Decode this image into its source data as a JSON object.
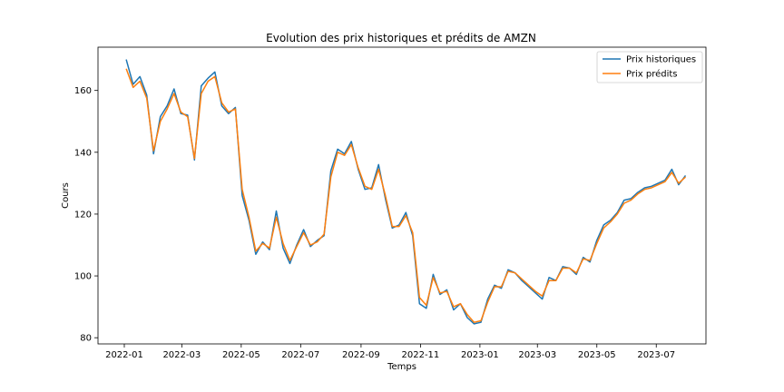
{
  "chart_data": {
    "type": "line",
    "title": "Evolution des prix historiques et prédits de AMZN",
    "xlabel": "Temps",
    "ylabel": "Cours",
    "x_ticks": [
      "2022-01",
      "2022-03",
      "2022-05",
      "2022-07",
      "2022-09",
      "2022-11",
      "2023-01",
      "2023-03",
      "2023-05",
      "2023-07"
    ],
    "y_ticks": [
      80,
      100,
      120,
      140,
      160
    ],
    "xlim": [
      "2021-12-05",
      "2023-08-21"
    ],
    "ylim": [
      78,
      174
    ],
    "legend_position": "top-right",
    "grid": false,
    "x": [
      "2022-01-03",
      "2022-01-10",
      "2022-01-17",
      "2022-01-24",
      "2022-01-31",
      "2022-02-07",
      "2022-02-14",
      "2022-02-21",
      "2022-02-28",
      "2022-03-07",
      "2022-03-14",
      "2022-03-21",
      "2022-03-28",
      "2022-04-04",
      "2022-04-11",
      "2022-04-18",
      "2022-04-25",
      "2022-05-02",
      "2022-05-09",
      "2022-05-16",
      "2022-05-23",
      "2022-05-30",
      "2022-06-06",
      "2022-06-13",
      "2022-06-20",
      "2022-06-27",
      "2022-07-04",
      "2022-07-11",
      "2022-07-18",
      "2022-07-25",
      "2022-08-01",
      "2022-08-08",
      "2022-08-15",
      "2022-08-22",
      "2022-08-29",
      "2022-09-05",
      "2022-09-12",
      "2022-09-19",
      "2022-09-26",
      "2022-10-03",
      "2022-10-10",
      "2022-10-17",
      "2022-10-24",
      "2022-10-31",
      "2022-11-07",
      "2022-11-14",
      "2022-11-21",
      "2022-11-28",
      "2022-12-05",
      "2022-12-12",
      "2022-12-19",
      "2022-12-26",
      "2023-01-02",
      "2023-01-09",
      "2023-01-16",
      "2023-01-23",
      "2023-01-30",
      "2023-02-06",
      "2023-02-13",
      "2023-02-20",
      "2023-02-27",
      "2023-03-06",
      "2023-03-13",
      "2023-03-20",
      "2023-03-27",
      "2023-04-03",
      "2023-04-10",
      "2023-04-17",
      "2023-04-24",
      "2023-05-01",
      "2023-05-08",
      "2023-05-15",
      "2023-05-22",
      "2023-05-29",
      "2023-06-05",
      "2023-06-12",
      "2023-06-19",
      "2023-06-26",
      "2023-07-03",
      "2023-07-10",
      "2023-07-17",
      "2023-07-24",
      "2023-07-31"
    ],
    "series": [
      {
        "name": "Prix historiques",
        "color": "#1f77b4",
        "values": [
          170.0,
          162.0,
          164.5,
          158.5,
          139.5,
          151.5,
          155.0,
          160.5,
          152.5,
          152.0,
          137.5,
          161.5,
          164.0,
          166.0,
          155.0,
          152.5,
          154.5,
          126.0,
          118.0,
          107.0,
          111.0,
          108.5,
          121.0,
          109.0,
          104.0,
          110.0,
          115.0,
          109.5,
          111.5,
          113.0,
          134.0,
          141.0,
          139.5,
          143.5,
          134.5,
          128.0,
          128.5,
          136.0,
          125.0,
          115.5,
          116.5,
          120.5,
          113.0,
          91.0,
          89.5,
          100.5,
          94.0,
          95.5,
          89.0,
          91.0,
          86.5,
          84.5,
          85.0,
          92.5,
          97.0,
          96.0,
          102.0,
          101.0,
          98.5,
          96.5,
          94.5,
          92.5,
          99.5,
          98.5,
          103.0,
          102.5,
          100.5,
          106.0,
          104.5,
          111.5,
          116.5,
          118.0,
          120.5,
          124.5,
          125.0,
          127.0,
          128.5,
          129.0,
          130.0,
          131.0,
          134.5,
          129.5,
          132.5
        ]
      },
      {
        "name": "Prix prédits",
        "color": "#ff7f0e",
        "values": [
          167.0,
          161.0,
          163.0,
          157.5,
          140.5,
          150.0,
          154.0,
          159.0,
          153.0,
          151.5,
          138.0,
          159.0,
          163.0,
          164.5,
          156.0,
          153.0,
          154.0,
          128.0,
          119.0,
          108.0,
          110.5,
          109.0,
          119.0,
          110.5,
          105.0,
          109.5,
          114.0,
          110.0,
          111.0,
          113.5,
          132.0,
          140.0,
          139.0,
          142.5,
          135.0,
          129.0,
          128.0,
          134.5,
          126.0,
          116.0,
          116.0,
          119.5,
          114.0,
          93.0,
          90.5,
          99.5,
          94.5,
          95.0,
          90.0,
          91.0,
          87.5,
          85.0,
          85.5,
          91.5,
          96.5,
          96.5,
          101.5,
          101.0,
          99.0,
          97.0,
          95.0,
          93.5,
          98.5,
          98.5,
          102.5,
          102.5,
          101.0,
          105.5,
          105.0,
          110.5,
          115.5,
          117.5,
          120.0,
          123.5,
          124.5,
          126.5,
          128.0,
          128.5,
          129.5,
          130.5,
          133.5,
          130.0,
          132.0
        ]
      }
    ]
  }
}
